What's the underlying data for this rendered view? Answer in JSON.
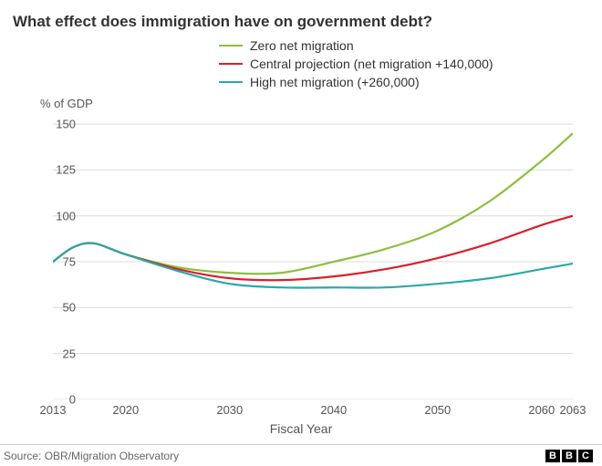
{
  "title": "What effect does immigration have on government debt?",
  "ylabel": "% of GDP",
  "xlabel": "Fiscal Year",
  "source": "Source: OBR/Migration Observatory",
  "logo_letters": [
    "B",
    "B",
    "C"
  ],
  "chart": {
    "type": "line",
    "background_color": "#ffffff",
    "grid_color": "#dcdcdc",
    "axis_font_size": 13,
    "title_font_size": 17,
    "line_width": 2.2,
    "xlim": [
      2013,
      2063
    ],
    "ylim": [
      0,
      155
    ],
    "yticks": [
      0,
      25,
      50,
      75,
      100,
      125,
      150
    ],
    "ytick_labels": [
      "0",
      "25",
      "50",
      "75",
      "100",
      "125",
      "150"
    ],
    "xticks": [
      2013,
      2020,
      2030,
      2040,
      2050,
      2060,
      2063
    ],
    "xtick_labels": [
      "2013",
      "2020",
      "2030",
      "2040",
      "2050",
      "2060",
      "2063"
    ],
    "series": [
      {
        "name": "Zero net migration",
        "color": "#8cbf3f",
        "x": [
          2013,
          2015,
          2017,
          2020,
          2025,
          2030,
          2035,
          2040,
          2045,
          2050,
          2055,
          2060,
          2063
        ],
        "y": [
          75,
          83,
          85,
          79,
          72,
          69,
          69,
          75,
          82,
          92,
          108,
          130,
          145
        ]
      },
      {
        "name": "Central projection (net migration +140,000)",
        "color": "#d9202a",
        "x": [
          2013,
          2015,
          2017,
          2020,
          2025,
          2030,
          2035,
          2040,
          2045,
          2050,
          2055,
          2060,
          2063
        ],
        "y": [
          75,
          83,
          85,
          79,
          71,
          66,
          65,
          67,
          71,
          77,
          85,
          95,
          100
        ]
      },
      {
        "name": "High net migration (+260,000)",
        "color": "#2aa9a9",
        "x": [
          2013,
          2015,
          2017,
          2020,
          2025,
          2030,
          2035,
          2040,
          2045,
          2050,
          2055,
          2060,
          2063
        ],
        "y": [
          75,
          83,
          85,
          79,
          70,
          63,
          61,
          61,
          61,
          63,
          66,
          71,
          74
        ]
      }
    ]
  }
}
